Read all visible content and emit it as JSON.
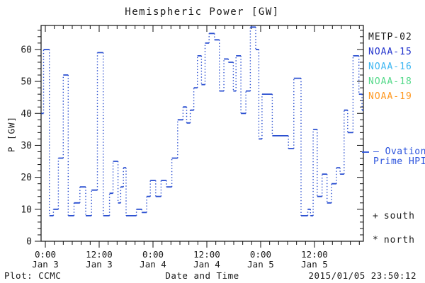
{
  "title": "Hemispheric Power [GW]",
  "y_axis_title": "P [GW]",
  "footer": {
    "plot_credit": "Plot: CCMC",
    "x_axis_title": "Date and Time",
    "timestamp": "2015/01/05 23:50:12"
  },
  "legend": {
    "satellites": [
      {
        "label": "METP-02",
        "color": "#1a1a1a"
      },
      {
        "label": "NOAA-15",
        "color": "#2233cc"
      },
      {
        "label": "NOAA-16",
        "color": "#3db6f2"
      },
      {
        "label": "NOAA-18",
        "color": "#55d98a"
      },
      {
        "label": "NOAA-19",
        "color": "#ff9922"
      }
    ],
    "model": {
      "line1": "— Ovation",
      "line2": "Prime HPI",
      "color": "#2a52dd"
    },
    "markers": [
      {
        "symbol": "+",
        "label": "south"
      },
      {
        "symbol": "*",
        "label": "north"
      }
    ]
  },
  "chart_data": {
    "type": "line",
    "subtype": "step-histogram",
    "title": "Hemispheric Power [GW]",
    "xlabel": "Date and Time",
    "ylabel": "P [GW]",
    "line_color": "#2a4fd0",
    "line_style": "solid horizontals, dotted verticals",
    "x_unit": "hours since 2015-01-03 00:00",
    "xlim": [
      -0.95,
      70.9
    ],
    "ylim": [
      0,
      67.5
    ],
    "grid": false,
    "y_major_ticks": [
      0,
      10,
      20,
      30,
      40,
      50,
      60
    ],
    "y_minor_step": 2,
    "x_minor_step": 2,
    "x_major_ticks": [
      {
        "t": 0,
        "time": "0:00",
        "date": "Jan 3"
      },
      {
        "t": 12,
        "time": "12:00",
        "date": "Jan 3"
      },
      {
        "t": 24,
        "time": "0:00",
        "date": "Jan 4"
      },
      {
        "t": 36,
        "time": "12:00",
        "date": "Jan 4"
      },
      {
        "t": 48,
        "time": "0:00",
        "date": "Jan 5"
      },
      {
        "t": 60,
        "time": "12:00",
        "date": "Jan 5"
      }
    ],
    "steps": [
      [
        -0.9,
        40
      ],
      [
        -0.4,
        60
      ],
      [
        0.9,
        8
      ],
      [
        1.8,
        10
      ],
      [
        2.9,
        26
      ],
      [
        4.0,
        52
      ],
      [
        5.1,
        8
      ],
      [
        6.4,
        12
      ],
      [
        7.7,
        17
      ],
      [
        9.0,
        8
      ],
      [
        10.3,
        16
      ],
      [
        11.6,
        59
      ],
      [
        12.9,
        8
      ],
      [
        14.3,
        15
      ],
      [
        15.1,
        25
      ],
      [
        16.2,
        12
      ],
      [
        16.8,
        17
      ],
      [
        17.4,
        23
      ],
      [
        18.0,
        8
      ],
      [
        20.3,
        10
      ],
      [
        21.5,
        9
      ],
      [
        22.6,
        14
      ],
      [
        23.4,
        19
      ],
      [
        24.6,
        14
      ],
      [
        25.8,
        19
      ],
      [
        27.0,
        17
      ],
      [
        28.2,
        26
      ],
      [
        29.5,
        38
      ],
      [
        30.7,
        42
      ],
      [
        31.5,
        37
      ],
      [
        32.3,
        41
      ],
      [
        33.1,
        48
      ],
      [
        33.9,
        58
      ],
      [
        34.8,
        49
      ],
      [
        35.6,
        62
      ],
      [
        36.5,
        65
      ],
      [
        37.7,
        63
      ],
      [
        38.8,
        47
      ],
      [
        39.8,
        57
      ],
      [
        40.8,
        56
      ],
      [
        41.9,
        47
      ],
      [
        42.5,
        58
      ],
      [
        43.6,
        40
      ],
      [
        44.7,
        47
      ],
      [
        45.7,
        67
      ],
      [
        46.9,
        60
      ],
      [
        47.6,
        32
      ],
      [
        48.3,
        46
      ],
      [
        50.6,
        33
      ],
      [
        54.2,
        29
      ],
      [
        55.4,
        51
      ],
      [
        57.0,
        8
      ],
      [
        58.5,
        10
      ],
      [
        59.1,
        8
      ],
      [
        59.7,
        35
      ],
      [
        60.6,
        14
      ],
      [
        61.7,
        21
      ],
      [
        62.8,
        12
      ],
      [
        63.8,
        18
      ],
      [
        64.9,
        23
      ],
      [
        65.7,
        21
      ],
      [
        66.6,
        41
      ],
      [
        67.4,
        34
      ],
      [
        68.6,
        58
      ],
      [
        69.9,
        46
      ],
      [
        70.6,
        41
      ]
    ]
  }
}
